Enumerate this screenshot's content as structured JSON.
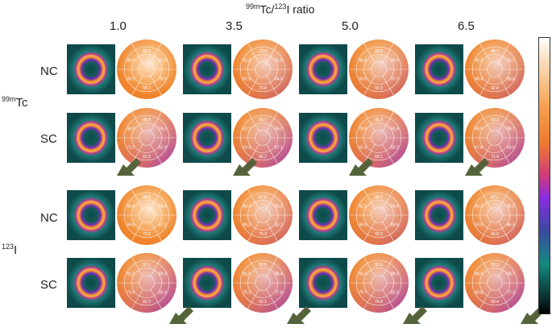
{
  "title_pre": "99m",
  "title_mid": "Tc/",
  "title_sup2": "123",
  "title_post": "I ratio",
  "ratios": [
    "1.0",
    "3.5",
    "5.0",
    "6.5"
  ],
  "row_labels": [
    "NC",
    "SC",
    "NC",
    "SC"
  ],
  "group_tc_sup": "99m",
  "group_tc": "Tc",
  "group_i_sup": "123",
  "group_i": "I",
  "colors": {
    "orange": "#f28a3a",
    "light": "#fce3c4",
    "purple": "#9a3ad0",
    "teal": "#178a82",
    "arrow": "#55633a"
  },
  "polar_values": [
    [
      [
        "83.2",
        "87.0",
        "76.5",
        "98.2",
        "95.0",
        "88.5"
      ],
      [
        "72.4",
        "91.5",
        "84.5",
        "73.8",
        "62.5",
        "55.2"
      ],
      [
        "93.0",
        "90.0",
        "97.7",
        "92.3",
        "95.0",
        "96.8"
      ],
      [
        "94.7",
        "90.1",
        "88.5",
        "92.0",
        "96.4",
        "95.3"
      ]
    ],
    [
      [
        "88.8",
        "76.3",
        "62.9",
        "81.5",
        "73.2",
        "49.0"
      ],
      [
        "90.7",
        "85.2",
        "87.1",
        "66.2",
        "53.3",
        "62.7"
      ],
      [
        "95.3",
        "91.9",
        "80.2",
        "68.1",
        "55.4",
        "78.4"
      ],
      [
        "93.2",
        "88.7",
        "69.5",
        "71.9",
        "67.8",
        "58.9"
      ]
    ],
    [
      [
        "98.5",
        "93.8",
        "87.2",
        "79.5",
        "94.6",
        "96.6"
      ],
      [
        "97.3",
        "93.1",
        "83.2",
        "75.3",
        "88.2",
        "95.4"
      ],
      [
        "98.2",
        "94.4",
        "89.5",
        "93.3",
        "96.6",
        "92.1"
      ],
      [
        "97.1",
        "95.0",
        "86.3",
        "94.0",
        "93.0",
        "96.2"
      ]
    ],
    [
      [
        "97.1",
        "84.3",
        "92.9",
        "81.2",
        "73.6",
        "91.2"
      ],
      [
        "92.5",
        "88.4",
        "77.8",
        "63.1",
        "76.2",
        "81.0"
      ],
      [
        "95.5",
        "89.2",
        "82.0",
        "74.8",
        "79.7",
        "90.4"
      ],
      [
        "93.3",
        "88.7",
        "77.3",
        "69.4",
        "80.8",
        "89.9"
      ]
    ]
  ]
}
